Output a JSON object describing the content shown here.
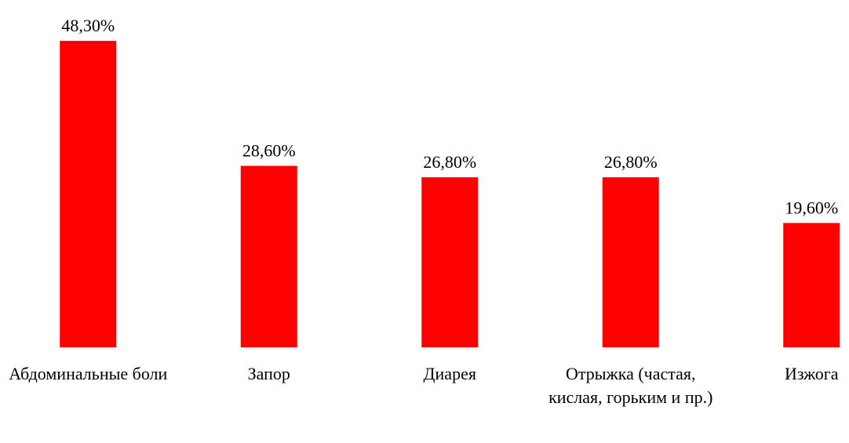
{
  "chart_data": {
    "type": "bar",
    "categories": [
      "Абдоминальные боли",
      "Запор",
      "Диарея",
      "Отрыжка (частая, кислая, горьким и пр.)",
      "Изжога"
    ],
    "values": [
      48.3,
      28.6,
      26.8,
      26.8,
      19.6
    ],
    "value_labels": [
      "48,30%",
      "28,60%",
      "26,80%",
      "26,80%",
      "19,60%"
    ],
    "color": "#ff0000",
    "ylim": [
      0,
      54
    ]
  }
}
